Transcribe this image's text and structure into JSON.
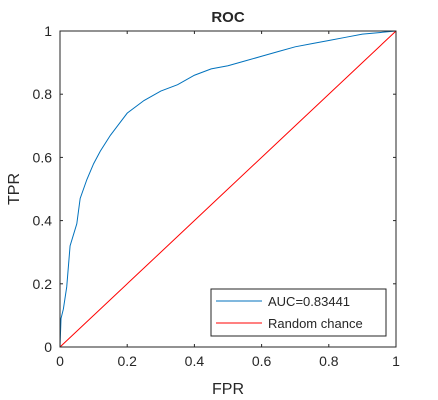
{
  "chart_data": {
    "type": "line",
    "title": "ROC",
    "xlabel": "FPR",
    "ylabel": "TPR",
    "xlim": [
      0,
      1
    ],
    "ylim": [
      0,
      1
    ],
    "xticks": [
      0,
      0.2,
      0.4,
      0.6,
      0.8,
      1
    ],
    "yticks": [
      0,
      0.2,
      0.4,
      0.6,
      0.8,
      1
    ],
    "xtick_labels": [
      "0",
      "0.2",
      "0.4",
      "0.6",
      "0.8",
      "1"
    ],
    "ytick_labels": [
      "0",
      "0.2",
      "0.4",
      "0.6",
      "0.8",
      "1"
    ],
    "grid": false,
    "legend_position": "bottom-right",
    "series": [
      {
        "name": "AUC=0.83441",
        "color": "#0072bd",
        "x": [
          0,
          0.003,
          0.01,
          0.02,
          0.03,
          0.05,
          0.06,
          0.08,
          0.1,
          0.12,
          0.15,
          0.2,
          0.25,
          0.3,
          0.35,
          0.4,
          0.45,
          0.5,
          0.55,
          0.6,
          0.65,
          0.7,
          0.75,
          0.8,
          0.85,
          0.9,
          0.95,
          1.0
        ],
        "y": [
          0,
          0.09,
          0.12,
          0.19,
          0.32,
          0.39,
          0.47,
          0.53,
          0.58,
          0.62,
          0.67,
          0.74,
          0.78,
          0.81,
          0.83,
          0.86,
          0.88,
          0.89,
          0.905,
          0.92,
          0.935,
          0.95,
          0.96,
          0.97,
          0.98,
          0.99,
          0.995,
          1.0
        ]
      },
      {
        "name": "Random chance",
        "color": "#ff0000",
        "x": [
          0,
          1
        ],
        "y": [
          0,
          1
        ]
      }
    ]
  }
}
